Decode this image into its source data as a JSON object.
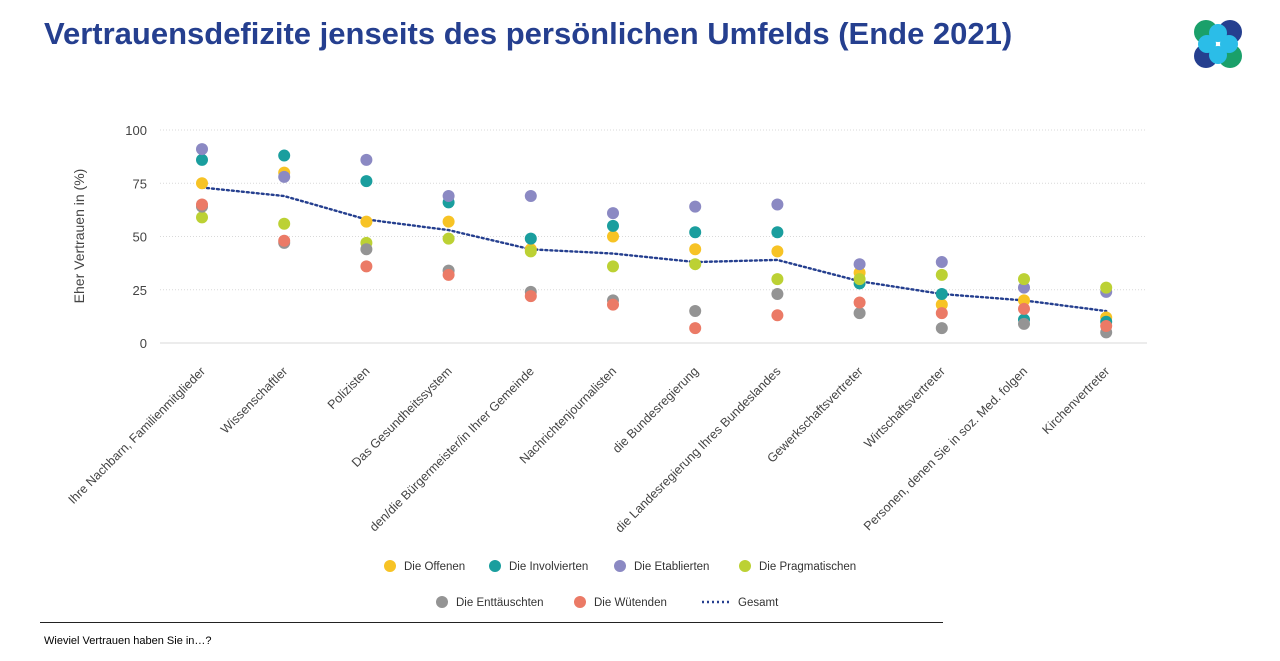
{
  "page": {
    "title": "Vertrauensdefizite jenseits des persönlichen Umfelds (Ende 2021)",
    "footnote": "Wieviel Vertrauen haben Sie in…?",
    "logo_colors": [
      "#1aa06a",
      "#253f8f",
      "#2bbde8"
    ]
  },
  "chart_data": {
    "type": "scatter",
    "title": "",
    "xlabel": "",
    "ylabel": "Eher Vertrauen  in (%)",
    "ylim": [
      0,
      100
    ],
    "yticks": [
      0,
      25,
      50,
      75,
      100
    ],
    "grid": true,
    "legend_position": "bottom",
    "categories": [
      "Ihre Nachbarn, Familienmitglieder",
      "Wissenschaftler",
      "Polizisten",
      "Das Gesundheitssystem",
      "den/die Bürgermeister/in Ihrer Gemeinde",
      "Nachrichtenjournalisten",
      "die Bundesregierung",
      "die Landesregierung Ihres Bundeslandes",
      "Gewerkschaftsvertreter",
      "Wirtschaftsvertreter",
      "Personen, denen Sie in soz. Med. folgen",
      "Kirchenvertreter"
    ],
    "series": [
      {
        "name": "Die Offenen",
        "color": "#f7c325",
        "values": [
          75,
          80,
          57,
          57,
          44,
          50,
          44,
          43,
          33,
          18,
          20,
          12
        ]
      },
      {
        "name": "Die Involvierten",
        "color": "#1a9e9e",
        "values": [
          86,
          88,
          76,
          66,
          49,
          55,
          52,
          52,
          28,
          23,
          11,
          10
        ]
      },
      {
        "name": "Die Etablierten",
        "color": "#8b89c3",
        "values": [
          91,
          78,
          86,
          69,
          69,
          61,
          64,
          65,
          37,
          38,
          26,
          24
        ]
      },
      {
        "name": "Die Pragmatischen",
        "color": "#bcd134",
        "values": [
          59,
          56,
          47,
          49,
          43,
          36,
          37,
          30,
          30,
          32,
          30,
          26
        ]
      },
      {
        "name": "Die Enttäuschten",
        "color": "#949494",
        "values": [
          64,
          47,
          44,
          34,
          24,
          20,
          15,
          23,
          14,
          7,
          9,
          5
        ]
      },
      {
        "name": "Die Wütenden",
        "color": "#eb7a66",
        "values": [
          65,
          48,
          36,
          32,
          22,
          18,
          7,
          13,
          19,
          14,
          16,
          8
        ]
      },
      {
        "name": "Gesamt",
        "color": "#253f8f",
        "style": "dotted-line",
        "values": [
          73,
          69,
          58,
          53,
          44,
          42,
          38,
          39,
          29,
          23,
          20,
          15
        ]
      }
    ]
  }
}
